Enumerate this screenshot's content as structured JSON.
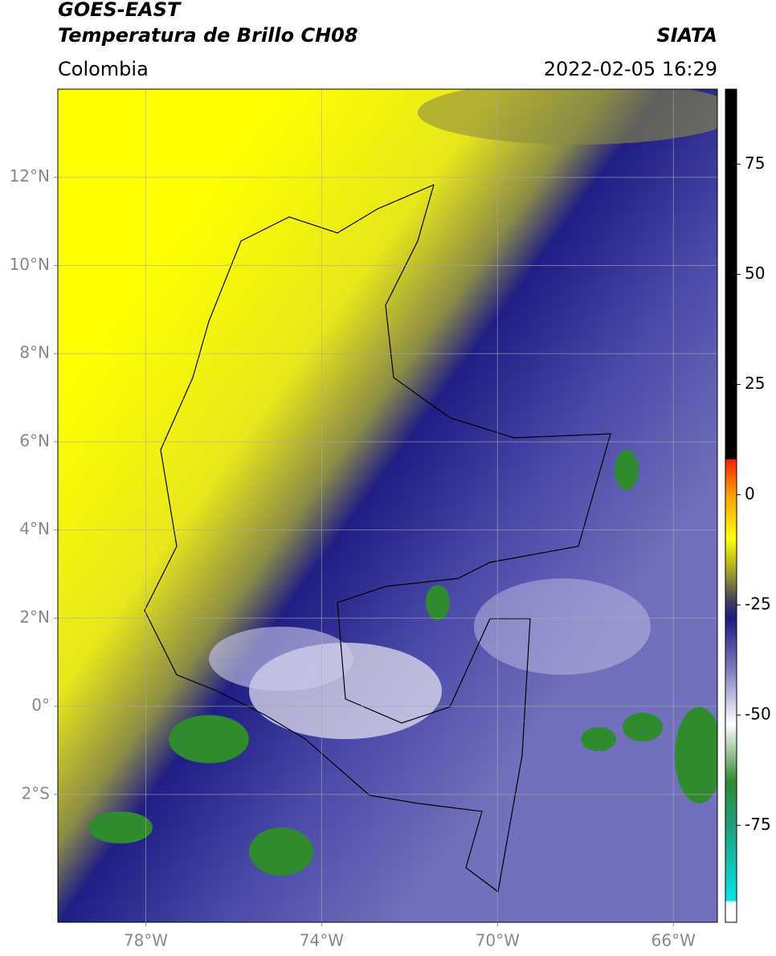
{
  "header": {
    "title": "GOES-EAST",
    "subtitle": "Temperatura de Brillo CH08",
    "source": "SIATA",
    "region": "Colombia",
    "datetime": "2022-02-05 16:29"
  },
  "map": {
    "xlim": [
      -80,
      -65
    ],
    "ylim": [
      -4.9,
      14
    ],
    "xticks": [
      {
        "value": -78,
        "label": "78°W"
      },
      {
        "value": -74,
        "label": "74°W"
      },
      {
        "value": -70,
        "label": "70°W"
      },
      {
        "value": -66,
        "label": "66°W"
      }
    ],
    "yticks": [
      {
        "value": 12,
        "label": "12°N"
      },
      {
        "value": 10,
        "label": "10°N"
      },
      {
        "value": 8,
        "label": "8°N"
      },
      {
        "value": 6,
        "label": "6°N"
      },
      {
        "value": 4,
        "label": "4°N"
      },
      {
        "value": 2,
        "label": "2°N"
      },
      {
        "value": 0,
        "label": "0°"
      },
      {
        "value": -2,
        "label": "2°S"
      }
    ],
    "grid": true
  },
  "colorbar": {
    "lim": [
      -97,
      92
    ],
    "ticks": [
      75,
      50,
      25,
      0,
      -25,
      -50,
      -75
    ],
    "stops": [
      {
        "value": -97,
        "color": "#ffffff"
      },
      {
        "value": -92.5,
        "color": "#ffffff"
      },
      {
        "value": -92,
        "color": "#00e5e5"
      },
      {
        "value": -75,
        "color": "#1f9e7a"
      },
      {
        "value": -65,
        "color": "#2e8b2e"
      },
      {
        "value": -52,
        "color": "#ffffff"
      },
      {
        "value": -40,
        "color": "#8080c0"
      },
      {
        "value": -28,
        "color": "#1a1a80"
      },
      {
        "value": -24,
        "color": "#404060"
      },
      {
        "value": -18,
        "color": "#9a9a2a"
      },
      {
        "value": -10,
        "color": "#ffff00"
      },
      {
        "value": 0,
        "color": "#ffa000"
      },
      {
        "value": 8,
        "color": "#ff2000"
      },
      {
        "value": 8.1,
        "color": "#000000"
      },
      {
        "value": 92,
        "color": "#000000"
      }
    ]
  }
}
